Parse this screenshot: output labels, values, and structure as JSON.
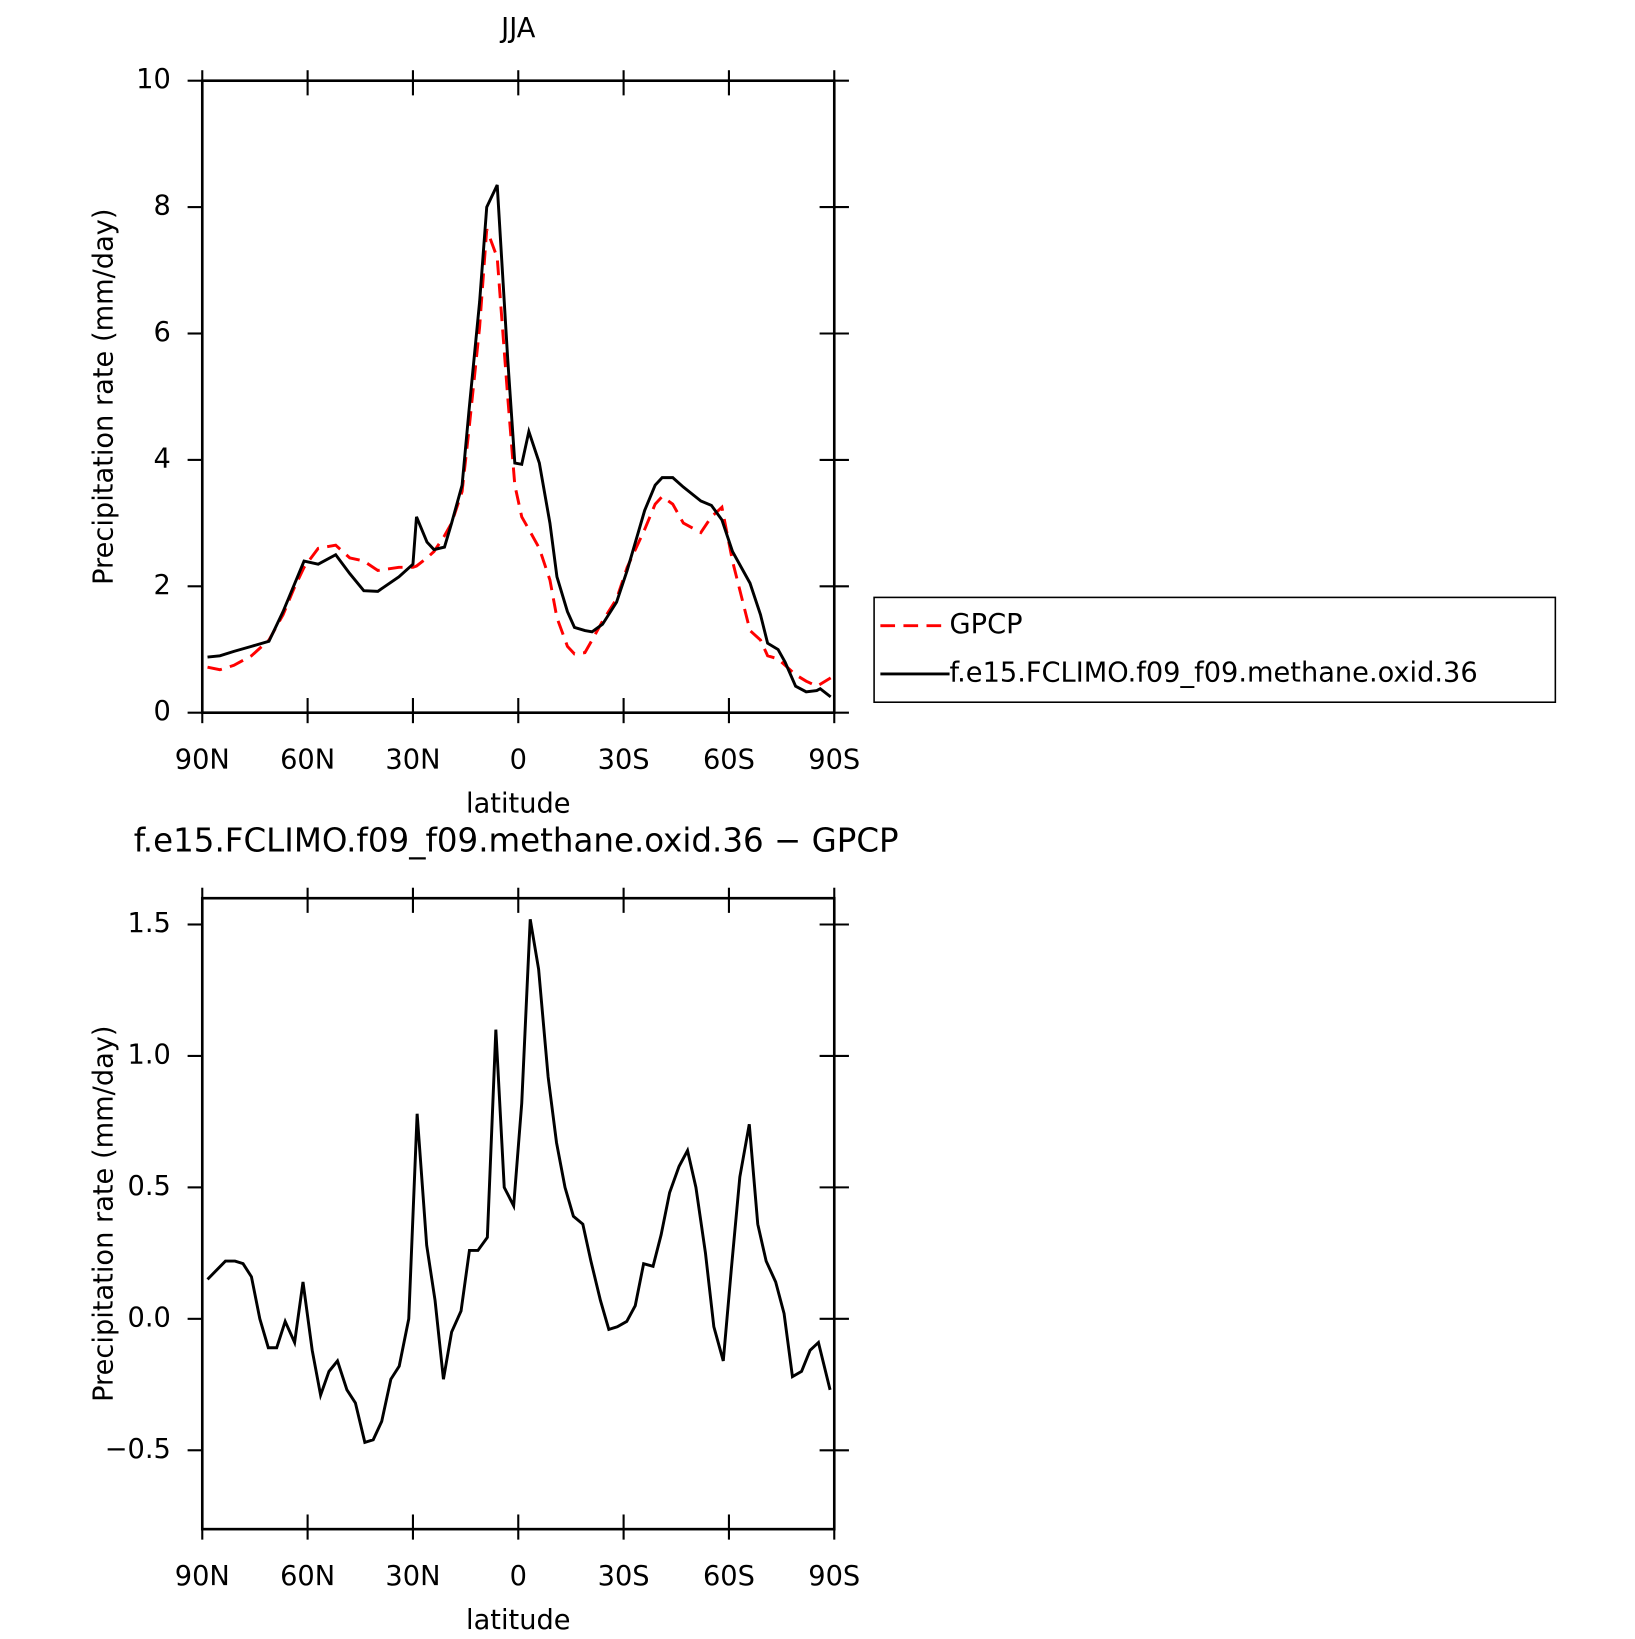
{
  "chart_data": [
    {
      "type": "line",
      "title": "JJA",
      "xlabel": "latitude",
      "ylabel": "Precipitation rate (mm/day)",
      "xlim": [
        90,
        -90
      ],
      "xticks": [
        {
          "value": 90,
          "label": "90N"
        },
        {
          "value": 60,
          "label": "60N"
        },
        {
          "value": 30,
          "label": "30N"
        },
        0,
        {
          "value": -30,
          "label": "30S"
        },
        {
          "value": -60,
          "label": "60S"
        },
        {
          "value": -90,
          "label": "90S"
        }
      ],
      "ylim": [
        0,
        10
      ],
      "yticks": [
        0,
        2,
        4,
        6,
        8,
        10
      ],
      "legend": "right",
      "x": [
        88.5,
        85,
        81,
        76,
        71,
        67,
        64,
        61,
        57,
        52,
        48,
        44,
        40,
        34,
        30,
        29,
        26,
        24,
        21,
        19,
        16,
        14,
        11,
        9,
        6,
        3,
        1,
        -1,
        -3,
        -6,
        -9,
        -11,
        -14,
        -16,
        -19,
        -21,
        -24,
        -28,
        -31,
        -36,
        -39,
        -41,
        -44,
        -47,
        -52,
        -55,
        -58,
        -61,
        -66,
        -69,
        -71,
        -74,
        -76,
        -79,
        -82,
        -85,
        -86,
        -89
      ],
      "series": [
        {
          "name": "GPCP",
          "color": "#ff0000",
          "style": "dashed",
          "values": [
            0.72,
            0.68,
            0.75,
            0.9,
            1.15,
            1.55,
            1.95,
            2.3,
            2.6,
            2.65,
            2.45,
            2.4,
            2.25,
            2.3,
            2.3,
            2.32,
            2.45,
            2.55,
            2.8,
            3.0,
            3.5,
            4.5,
            6.1,
            7.65,
            7.2,
            5.0,
            3.6,
            3.1,
            2.9,
            2.6,
            2.1,
            1.5,
            1.05,
            0.93,
            0.95,
            1.15,
            1.45,
            1.8,
            2.3,
            2.9,
            3.3,
            3.42,
            3.3,
            3.0,
            2.85,
            3.1,
            3.25,
            2.4,
            1.3,
            1.15,
            0.9,
            0.85,
            0.75,
            0.6,
            0.5,
            0.42,
            0.45,
            0.55
          ]
        },
        {
          "name": "f.e15.FCLIMO.f09_f09.methane.oxid.36",
          "color": "#000000",
          "style": "solid",
          "values": [
            0.88,
            0.9,
            0.97,
            1.05,
            1.13,
            1.6,
            2.0,
            2.4,
            2.35,
            2.5,
            2.2,
            1.93,
            1.92,
            2.15,
            2.35,
            3.1,
            2.7,
            2.58,
            2.62,
            3.0,
            3.6,
            4.8,
            6.5,
            8.0,
            8.35,
            5.6,
            3.95,
            3.93,
            4.45,
            3.95,
            3.0,
            2.15,
            1.6,
            1.35,
            1.3,
            1.28,
            1.4,
            1.75,
            2.25,
            3.2,
            3.6,
            3.72,
            3.72,
            3.57,
            3.35,
            3.28,
            3.05,
            2.55,
            2.05,
            1.55,
            1.1,
            1.0,
            0.8,
            0.42,
            0.33,
            0.35,
            0.38,
            0.25
          ]
        }
      ]
    },
    {
      "type": "line",
      "title": "f.e15.FCLIMO.f09_f09.methane.oxid.36 − GPCP",
      "xlabel": "latitude",
      "ylabel": "Precipitation rate (mm/day)",
      "xlim": [
        90,
        -90
      ],
      "xticks": [
        {
          "value": 90,
          "label": "90N"
        },
        {
          "value": 60,
          "label": "60N"
        },
        {
          "value": 30,
          "label": "30N"
        },
        0,
        {
          "value": -30,
          "label": "30S"
        },
        {
          "value": -60,
          "label": "60S"
        },
        {
          "value": -90,
          "label": "90S"
        }
      ],
      "ylim": [
        -0.8,
        1.6
      ],
      "yticks": [
        {
          "value": -0.5,
          "label": "−0.5"
        },
        {
          "value": 0,
          "label": "0.0"
        },
        0.5,
        {
          "value": 1,
          "label": "1.0"
        },
        1.5
      ],
      "x": [
        88.5,
        83.4,
        80.7,
        78.4,
        76,
        73.6,
        71.2,
        68.8,
        66.4,
        63.7,
        61.3,
        58.7,
        56.3,
        53.9,
        51.5,
        48.8,
        46.4,
        43.7,
        41.3,
        38.9,
        36.3,
        33.9,
        31.2,
        28.8,
        26.1,
        23.7,
        21.3,
        19,
        16.3,
        13.9,
        11.5,
        8.8,
        6.4,
        4,
        1.3,
        -1,
        -3.4,
        -5.8,
        -8.5,
        -10.9,
        -13.3,
        -15.7,
        -18.4,
        -20.7,
        -23.4,
        -25.8,
        -28.2,
        -30.9,
        -33.3,
        -35.7,
        -38.4,
        -40.7,
        -43.1,
        -45.8,
        -48.2,
        -50.6,
        -53.3,
        -55.7,
        -58.4,
        -60.7,
        -63.1,
        -65.8,
        -68.2,
        -70.6,
        -73.3,
        -75.7,
        -78.1,
        -80.7,
        -83.1,
        -85.5,
        -88.8
      ],
      "series": [
        {
          "color": "#000000",
          "style": "solid",
          "values": [
            0.15,
            0.22,
            0.22,
            0.21,
            0.16,
            0.0,
            -0.11,
            -0.11,
            -0.01,
            -0.09,
            0.14,
            -0.12,
            -0.29,
            -0.2,
            -0.16,
            -0.27,
            -0.32,
            -0.47,
            -0.46,
            -0.39,
            -0.23,
            -0.18,
            0.0,
            0.78,
            0.28,
            0.07,
            -0.23,
            -0.05,
            0.03,
            0.26,
            0.26,
            0.31,
            1.1,
            0.5,
            0.43,
            0.82,
            1.52,
            1.33,
            0.92,
            0.67,
            0.5,
            0.39,
            0.36,
            0.22,
            0.07,
            -0.04,
            -0.03,
            -0.01,
            0.05,
            0.21,
            0.2,
            0.32,
            0.48,
            0.58,
            0.64,
            0.5,
            0.25,
            -0.03,
            -0.16,
            0.19,
            0.54,
            0.74,
            0.36,
            0.22,
            0.14,
            0.02,
            -0.22,
            -0.2,
            -0.12,
            -0.09,
            -0.27
          ]
        }
      ]
    }
  ]
}
